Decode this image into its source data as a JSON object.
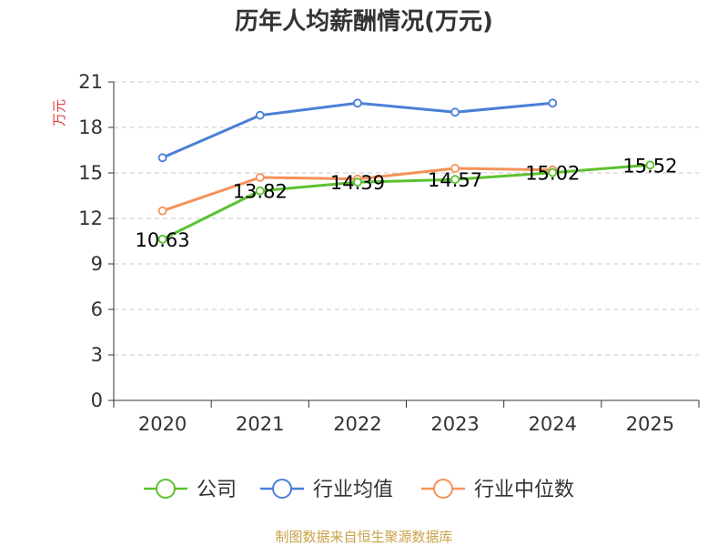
{
  "chart_data": {
    "type": "line",
    "title": "历年人均薪酬情况(万元)",
    "ylabel": "万元",
    "xlabel": "",
    "categories": [
      "2020",
      "2021",
      "2022",
      "2023",
      "2024",
      "2025"
    ],
    "ylim": [
      0,
      21
    ],
    "yticks": [
      0,
      3,
      6,
      9,
      12,
      15,
      18,
      21
    ],
    "grid": true,
    "legend_position": "bottom",
    "series": [
      {
        "name": "公司",
        "color": "#5cc12e",
        "values": [
          10.63,
          13.82,
          14.39,
          14.57,
          15.02,
          15.52
        ],
        "labels": [
          "10.63",
          "13.82",
          "14.39",
          "14.57",
          "15.02",
          "15.52"
        ]
      },
      {
        "name": "行业均值",
        "color": "#4a7fd6",
        "values": [
          16.0,
          18.8,
          19.6,
          19.0,
          19.6,
          null
        ]
      },
      {
        "name": "行业中位数",
        "color": "#f5925a",
        "values": [
          12.5,
          14.7,
          14.6,
          15.3,
          15.2,
          null
        ]
      }
    ],
    "source": "制图数据来自恒生聚源数据库"
  }
}
